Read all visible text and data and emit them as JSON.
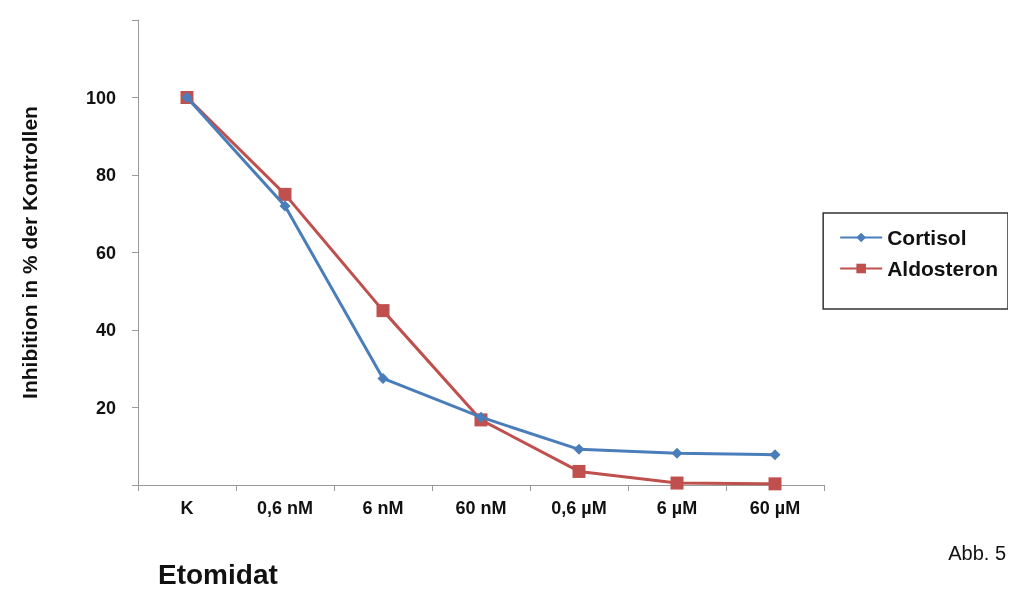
{
  "chart_data": {
    "type": "line",
    "ylabel": "Inhibition in % der Kontrollen",
    "xlabel": "Etomidat",
    "categories": [
      "K",
      "0,6 nM",
      "6 nM",
      "60 nM",
      "0,6 µM",
      "6 µM",
      "60 µM"
    ],
    "series": [
      {
        "name": "Cortisol",
        "color": "#4a7ebb",
        "marker": "diamond",
        "values": [
          100,
          72,
          27.5,
          17.5,
          9.2,
          8.2,
          7.8
        ]
      },
      {
        "name": "Aldosteron",
        "color": "#c0504d",
        "marker": "square",
        "values": [
          100,
          75,
          45,
          16.8,
          3.5,
          0.5,
          0.3
        ]
      }
    ],
    "ylim": [
      0,
      120
    ],
    "yticks": [
      {
        "value": 0,
        "label": null
      },
      20,
      40,
      60,
      80,
      100,
      {
        "value": 120,
        "label": null
      }
    ],
    "grid": false,
    "legend": "right",
    "annotations": [
      "Abb. 5"
    ]
  }
}
